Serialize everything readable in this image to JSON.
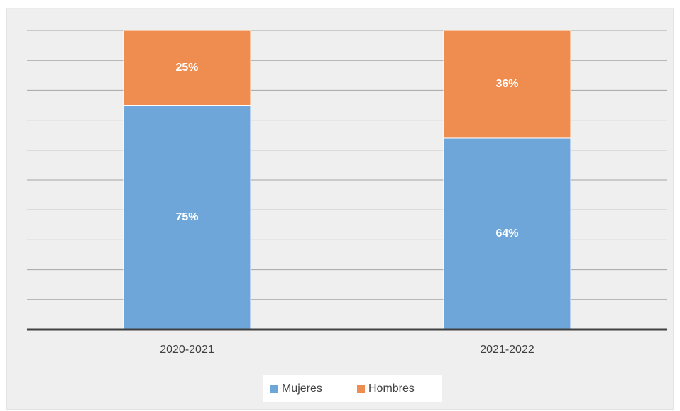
{
  "chart_data": {
    "type": "stacked_bar",
    "categories": [
      "2020-2021",
      "2021-2022"
    ],
    "series": [
      {
        "name": "Mujeres",
        "color": "#6fa6da",
        "values": [
          75,
          64
        ],
        "value_labels": [
          "75%",
          "64%"
        ]
      },
      {
        "name": "Hombres",
        "color": "#ef8c4f",
        "values": [
          25,
          36
        ],
        "value_labels": [
          "25%",
          "36%"
        ]
      }
    ],
    "ylim": [
      0,
      100
    ],
    "yticks": [
      0,
      10,
      20,
      30,
      40,
      50,
      60,
      70,
      80,
      90,
      100
    ],
    "grid": true,
    "legend": "bottom"
  }
}
